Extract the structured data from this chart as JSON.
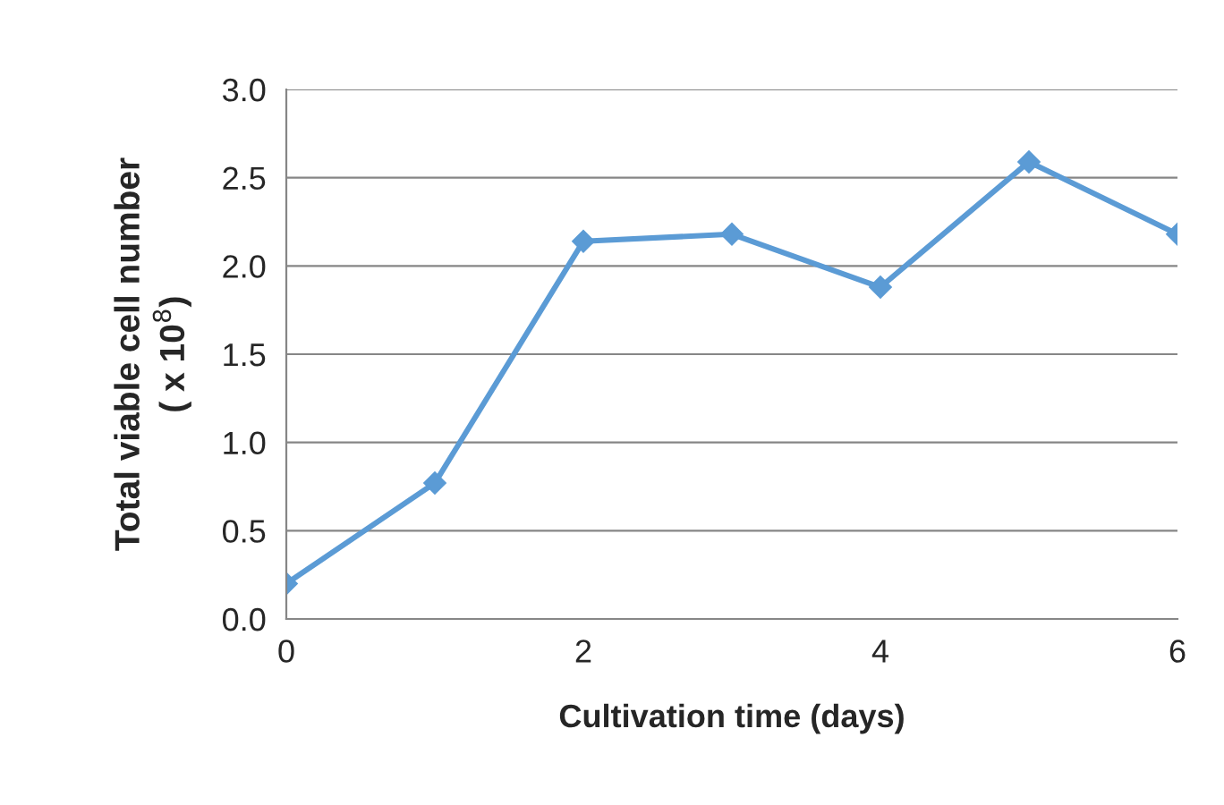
{
  "chart_data": {
    "type": "line",
    "xlabel": "Cultivation time (days)",
    "ylabel": "Total viable cell number\n( x 10$^{8}$)",
    "x": [
      0,
      1,
      2,
      3,
      4,
      5,
      6
    ],
    "series": [
      {
        "color": "#5b9bd5",
        "values": [
          0.2,
          0.77,
          2.14,
          2.18,
          1.88,
          2.59,
          2.18
        ]
      }
    ],
    "xlim": [
      0,
      6
    ],
    "xticks": [
      0,
      2,
      4,
      6
    ],
    "ylim": [
      0,
      3
    ],
    "yticks": [
      {
        "value": 0,
        "label": "0.0"
      },
      {
        "value": 0.5,
        "label": "0.5"
      },
      {
        "value": 1,
        "label": "1.0"
      },
      {
        "value": 1.5,
        "label": "1.5"
      },
      {
        "value": 2,
        "label": "2.0"
      },
      {
        "value": 2.5,
        "label": "2.5"
      },
      {
        "value": 3,
        "label": "3.0"
      }
    ],
    "grid": "y",
    "marker": "diamond",
    "line_style": "solid",
    "legend": false
  }
}
